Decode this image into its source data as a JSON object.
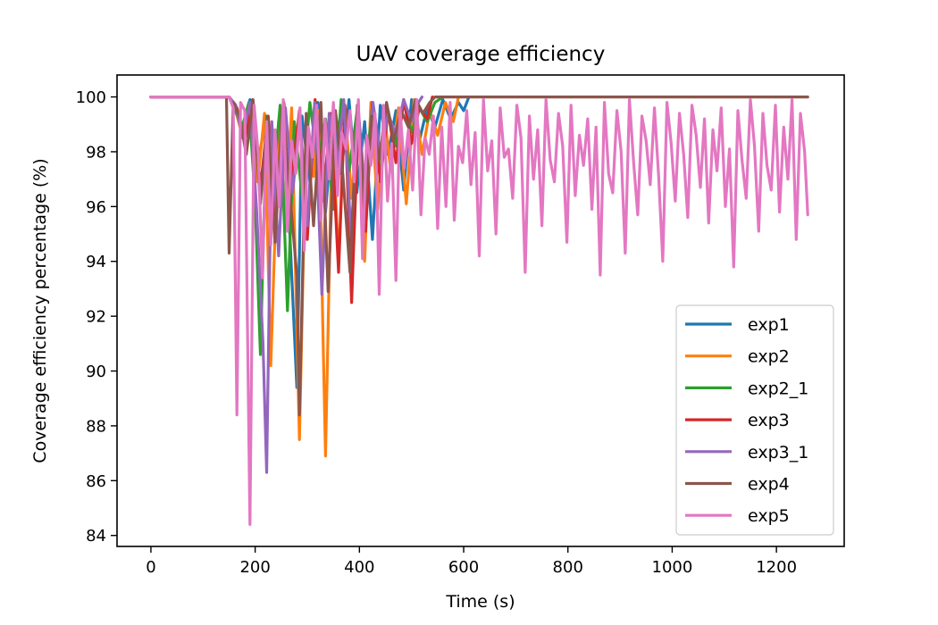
{
  "chart_data": {
    "type": "line",
    "title": "UAV coverage efficiency",
    "xlabel": "Time (s)",
    "ylabel": "Coverage efficiency percentage (%)",
    "xlim": [
      -65,
      1330
    ],
    "ylim": [
      83.6,
      100.8
    ],
    "xticks": [
      0,
      200,
      400,
      600,
      800,
      1000,
      1200
    ],
    "xtick_labels": [
      "0",
      "200",
      "400",
      "600",
      "800",
      "1000",
      "1200"
    ],
    "yticks": [
      84,
      86,
      88,
      90,
      92,
      94,
      96,
      98,
      100
    ],
    "ytick_labels": [
      "84",
      "86",
      "88",
      "90",
      "92",
      "94",
      "96",
      "98",
      "100"
    ],
    "grid": false,
    "legend_position": "lower-right",
    "series": [
      {
        "name": "exp1",
        "color": "#1f77b4",
        "x": [
          0,
          150,
          160,
          175,
          190,
          205,
          220,
          235,
          250,
          265,
          280,
          290,
          305,
          320,
          335,
          350,
          365,
          380,
          395,
          410,
          425,
          440,
          455,
          470,
          485,
          500,
          515,
          530,
          545,
          560,
          575,
          590,
          600,
          610
        ],
        "y": [
          100,
          100,
          99.6,
          98.8,
          99.9,
          97.5,
          99.2,
          96.8,
          99.5,
          95.6,
          89.4,
          99.3,
          96.9,
          99.8,
          95.8,
          99.4,
          97.2,
          99.9,
          96.5,
          99.1,
          94.8,
          99.7,
          97.9,
          99.5,
          96.6,
          99.9,
          98.4,
          99.6,
          98.9,
          99.9,
          99.2,
          99.8,
          99.5,
          100
        ]
      },
      {
        "name": "exp2",
        "color": "#ff7f0e",
        "x": [
          0,
          150,
          160,
          175,
          190,
          205,
          218,
          230,
          245,
          258,
          270,
          285,
          298,
          312,
          322,
          330,
          335,
          348,
          360,
          372,
          385,
          398,
          410,
          422,
          435,
          448,
          460,
          475,
          490,
          505,
          520,
          535,
          550,
          565,
          580,
          590
        ],
        "y": [
          100,
          100,
          99.7,
          98.6,
          99.8,
          96.9,
          99.4,
          90.2,
          99.1,
          95.5,
          99.6,
          87.5,
          99.0,
          97.1,
          99.5,
          91.4,
          86.9,
          99.2,
          93.9,
          99.7,
          96.3,
          99.3,
          94.0,
          99.8,
          95.9,
          99.4,
          97.3,
          99.6,
          96.1,
          99.9,
          97.9,
          99.5,
          98.6,
          99.8,
          99.1,
          100
        ]
      },
      {
        "name": "exp2_1",
        "color": "#2ca02c",
        "x": [
          0,
          150,
          162,
          175,
          188,
          200,
          210,
          222,
          235,
          248,
          262,
          275,
          290,
          305,
          320,
          335,
          350,
          365,
          380,
          395,
          410,
          425,
          440,
          455,
          470,
          485,
          500,
          515,
          530,
          545,
          560
        ],
        "y": [
          100,
          100,
          99.5,
          98.9,
          99.8,
          96.2,
          90.6,
          99.3,
          97.0,
          99.7,
          92.2,
          99.1,
          96.4,
          99.8,
          97.6,
          99.2,
          95.9,
          99.9,
          97.3,
          99.4,
          96.8,
          99.7,
          97.1,
          99.5,
          98.2,
          99.9,
          98.7,
          99.6,
          99.1,
          99.8,
          100
        ]
      },
      {
        "name": "exp3",
        "color": "#d62728",
        "x": [
          0,
          150,
          165,
          180,
          195,
          210,
          225,
          240,
          255,
          270,
          285,
          300,
          315,
          330,
          345,
          360,
          372,
          385,
          398,
          412,
          425,
          440,
          455,
          470,
          485,
          500,
          515,
          530,
          540
        ],
        "y": [
          100,
          100,
          99.6,
          98.4,
          99.9,
          96.7,
          99.3,
          95.4,
          99.8,
          97.0,
          99.5,
          94.8,
          99.9,
          96.2,
          99.4,
          93.6,
          99.7,
          92.5,
          99.2,
          95.1,
          99.8,
          96.9,
          99.5,
          97.6,
          99.9,
          98.3,
          99.6,
          99.2,
          100
        ]
      },
      {
        "name": "exp3_1",
        "color": "#9467bd",
        "x": [
          0,
          150,
          163,
          176,
          190,
          203,
          215,
          222,
          232,
          245,
          258,
          272,
          286,
          300,
          314,
          328,
          342,
          356,
          370,
          384,
          398,
          412,
          426,
          440,
          455,
          470,
          485,
          500,
          510,
          520
        ],
        "y": [
          100,
          100,
          99.7,
          98.5,
          99.8,
          95.8,
          91.0,
          86.3,
          99.1,
          94.2,
          99.6,
          96.5,
          99.3,
          95.3,
          99.8,
          92.8,
          99.4,
          97.4,
          99.9,
          94.9,
          99.5,
          96.3,
          99.8,
          97.9,
          99.4,
          98.6,
          99.9,
          99.1,
          99.7,
          100
        ]
      },
      {
        "name": "exp4",
        "color": "#8c564b",
        "x": [
          0,
          145,
          150,
          158,
          170,
          183,
          196,
          210,
          224,
          238,
          252,
          266,
          280,
          285,
          298,
          312,
          326,
          340,
          354,
          368,
          382,
          396,
          410,
          424,
          438,
          452,
          466,
          480,
          494,
          508,
          522,
          535,
          545,
          1260
        ],
        "y": [
          100,
          100,
          94.3,
          99.8,
          99.3,
          97.9,
          99.9,
          96.1,
          99.2,
          94.7,
          99.6,
          96.6,
          93.5,
          88.4,
          99.4,
          95.3,
          99.8,
          92.9,
          99.5,
          97.2,
          93.6,
          99.7,
          96.0,
          99.3,
          97.7,
          99.8,
          98.4,
          99.5,
          98.9,
          99.9,
          99.4,
          99.8,
          100,
          100
        ]
      },
      {
        "name": "exp5",
        "color": "#e377c2",
        "x": [
          0,
          150,
          158,
          165,
          172,
          180,
          190,
          198,
          206,
          214,
          222,
          230,
          238,
          246,
          254,
          262,
          270,
          278,
          286,
          294,
          302,
          310,
          318,
          326,
          334,
          342,
          350,
          358,
          366,
          374,
          382,
          390,
          398,
          406,
          414,
          422,
          430,
          438,
          446,
          454,
          462,
          470,
          478,
          486,
          494,
          502,
          510,
          518,
          526,
          534,
          542,
          550,
          558,
          566,
          574,
          582,
          590,
          598,
          606,
          614,
          622,
          630,
          638,
          646,
          654,
          662,
          670,
          678,
          686,
          694,
          702,
          710,
          718,
          726,
          734,
          742,
          750,
          758,
          766,
          774,
          782,
          790,
          798,
          806,
          814,
          822,
          830,
          838,
          846,
          854,
          862,
          870,
          878,
          886,
          894,
          902,
          910,
          918,
          926,
          934,
          942,
          950,
          958,
          966,
          974,
          982,
          990,
          998,
          1006,
          1014,
          1022,
          1030,
          1038,
          1046,
          1054,
          1062,
          1070,
          1078,
          1086,
          1094,
          1102,
          1110,
          1118,
          1126,
          1134,
          1142,
          1150,
          1158,
          1166,
          1174,
          1182,
          1190,
          1198,
          1206,
          1214,
          1222,
          1230,
          1238,
          1246,
          1254,
          1260
        ],
        "y": [
          100,
          100,
          99.6,
          88.4,
          99.8,
          99.5,
          84.4,
          99.7,
          97.9,
          93.4,
          99.1,
          94.6,
          98.8,
          96.0,
          99.9,
          95.1,
          98.4,
          97.2,
          99.6,
          94.4,
          98.9,
          97.8,
          99.7,
          95.5,
          99.2,
          97.0,
          99.8,
          96.4,
          98.7,
          98.1,
          99.5,
          96.9,
          99.9,
          94.1,
          98.6,
          97.5,
          99.4,
          92.8,
          99.7,
          96.2,
          98.3,
          93.3,
          99.6,
          97.4,
          98.8,
          96.6,
          99.9,
          95.7,
          98.5,
          97.9,
          99.3,
          95.2,
          98.9,
          96.0,
          99.8,
          95.5,
          98.2,
          97.6,
          99.5,
          96.8,
          98.7,
          94.2,
          99.9,
          97.3,
          98.4,
          95.0,
          99.6,
          97.8,
          98.1,
          96.3,
          99.7,
          98.5,
          93.6,
          99.3,
          97.0,
          98.8,
          95.3,
          99.9,
          97.7,
          96.9,
          99.4,
          98.2,
          94.7,
          99.7,
          96.4,
          98.6,
          97.5,
          99.2,
          95.9,
          98.9,
          93.5,
          99.8,
          97.2,
          96.5,
          99.5,
          98.0,
          94.3,
          99.9,
          97.6,
          95.7,
          99.3,
          98.4,
          96.8,
          99.6,
          97.1,
          94.0,
          99.8,
          98.3,
          96.2,
          99.4,
          97.9,
          95.6,
          99.7,
          98.6,
          96.7,
          99.2,
          95.4,
          98.8,
          97.3,
          99.6,
          96.0,
          98.1,
          93.8,
          99.5,
          97.7,
          96.3,
          99.9,
          98.2,
          95.1,
          99.4,
          97.5,
          96.6,
          99.7,
          95.8,
          98.9,
          97.0,
          99.9,
          94.8,
          99.4,
          98.0,
          95.7
        ]
      }
    ]
  }
}
